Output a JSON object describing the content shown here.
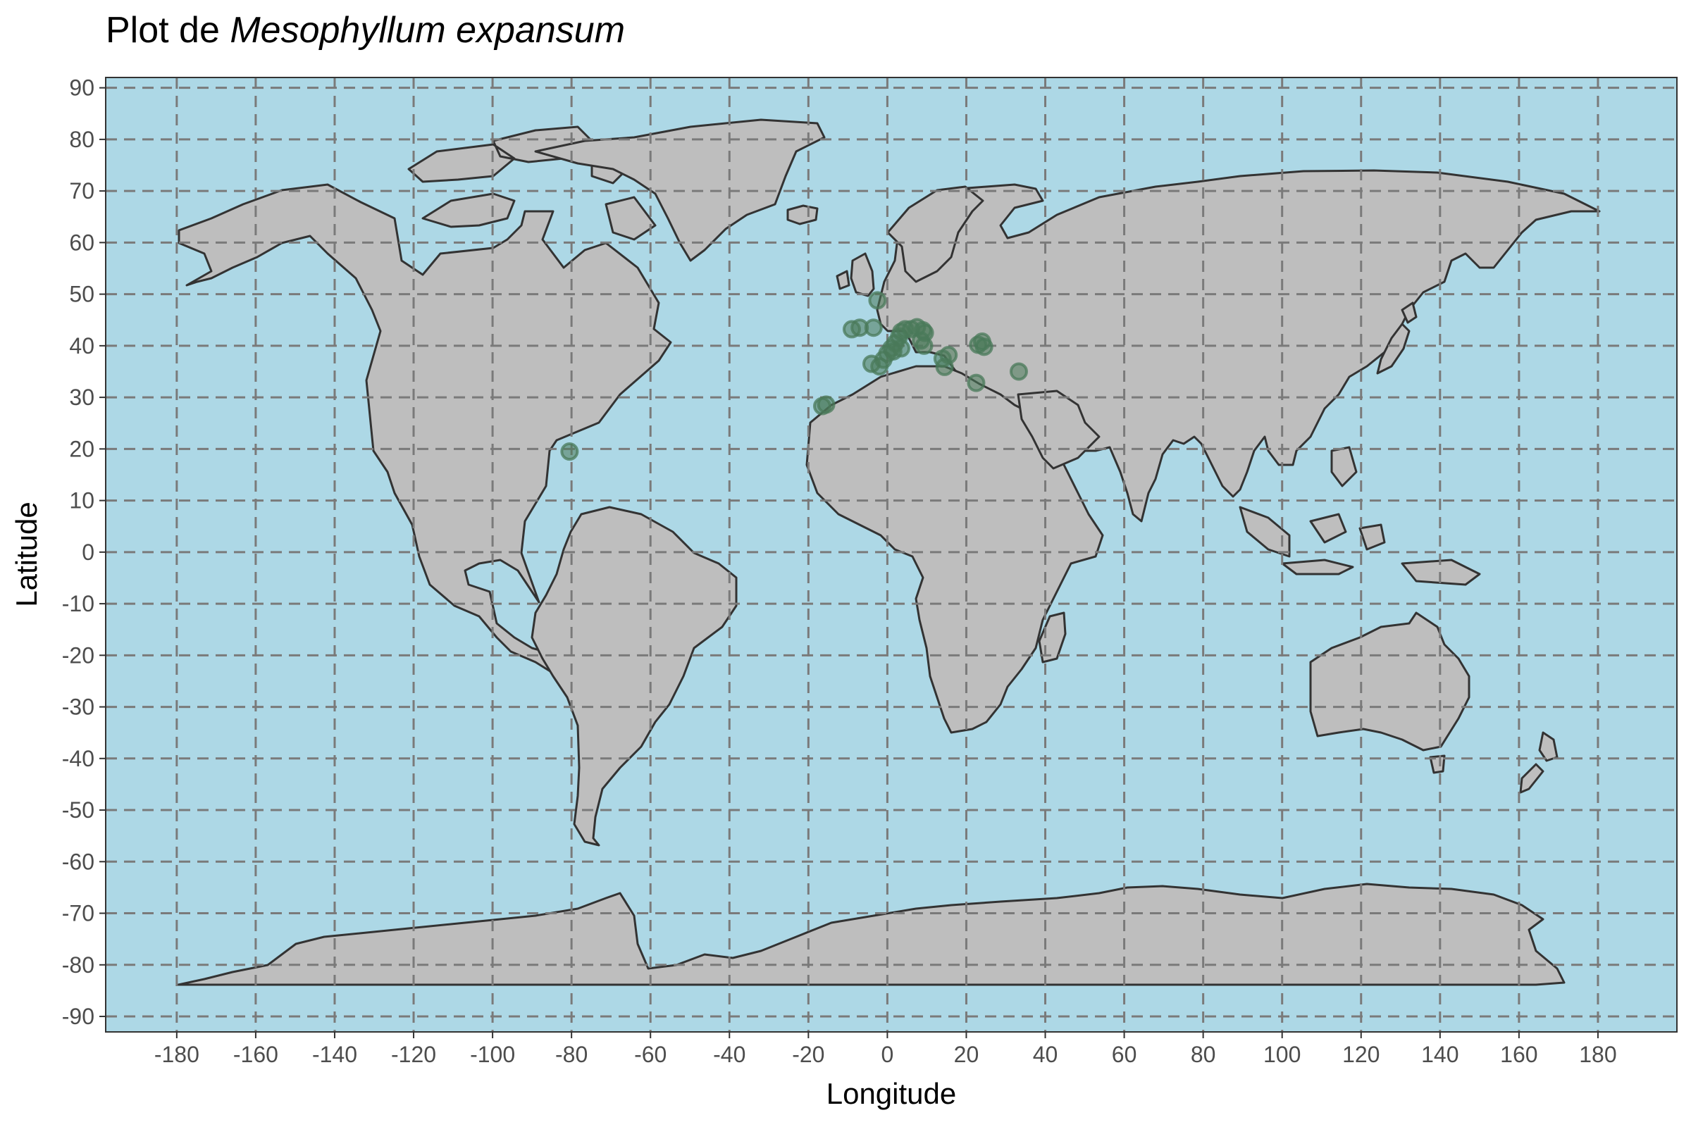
{
  "title": {
    "prefix": "Plot de ",
    "species": "Mesophyllum expansum"
  },
  "colors": {
    "ocean": "#add8e6",
    "land": "#bebebe",
    "border": "#333333",
    "grid": "#7a7a7a",
    "point": "#4a7a5a"
  },
  "chart_data": {
    "type": "scatter",
    "xlabel": "Longitude",
    "ylabel": "Latitude",
    "xlim": [
      -198,
      200
    ],
    "ylim": [
      -93,
      92
    ],
    "x_ticks": [
      -180,
      -160,
      -140,
      -120,
      -100,
      -80,
      -60,
      -40,
      -20,
      0,
      20,
      40,
      60,
      80,
      100,
      120,
      140,
      160,
      180
    ],
    "y_ticks": [
      90,
      80,
      70,
      60,
      50,
      40,
      30,
      20,
      10,
      0,
      -10,
      -20,
      -30,
      -40,
      -50,
      -60,
      -70,
      -80,
      -90
    ],
    "grid": true,
    "legend": "none",
    "points": [
      {
        "lon": -80.5,
        "lat": 19.5
      },
      {
        "lon": -16.5,
        "lat": 28.3
      },
      {
        "lon": -15.5,
        "lat": 28.6
      },
      {
        "lon": -9.0,
        "lat": 43.2
      },
      {
        "lon": -7.0,
        "lat": 43.5
      },
      {
        "lon": -3.5,
        "lat": 43.5
      },
      {
        "lon": -2.5,
        "lat": 48.8
      },
      {
        "lon": -4.0,
        "lat": 36.5
      },
      {
        "lon": -2.0,
        "lat": 36.0
      },
      {
        "lon": -1.0,
        "lat": 37.3
      },
      {
        "lon": 0.0,
        "lat": 38.5
      },
      {
        "lon": 1.0,
        "lat": 39.5
      },
      {
        "lon": 2.0,
        "lat": 40.5
      },
      {
        "lon": 3.0,
        "lat": 41.8
      },
      {
        "lon": 3.5,
        "lat": 42.7
      },
      {
        "lon": 4.5,
        "lat": 43.2
      },
      {
        "lon": 6.0,
        "lat": 43.2
      },
      {
        "lon": 7.5,
        "lat": 43.6
      },
      {
        "lon": 9.0,
        "lat": 43.0
      },
      {
        "lon": 9.5,
        "lat": 42.5
      },
      {
        "lon": 8.5,
        "lat": 41.0
      },
      {
        "lon": 9.3,
        "lat": 40.0
      },
      {
        "lon": 3.5,
        "lat": 39.5
      },
      {
        "lon": 1.5,
        "lat": 38.9
      },
      {
        "lon": 14.0,
        "lat": 37.5
      },
      {
        "lon": 15.5,
        "lat": 38.2
      },
      {
        "lon": 14.5,
        "lat": 35.9
      },
      {
        "lon": 23.0,
        "lat": 40.2
      },
      {
        "lon": 24.0,
        "lat": 40.8
      },
      {
        "lon": 24.5,
        "lat": 39.8
      },
      {
        "lon": 22.5,
        "lat": 32.8
      },
      {
        "lon": 33.3,
        "lat": 35.0
      }
    ]
  }
}
